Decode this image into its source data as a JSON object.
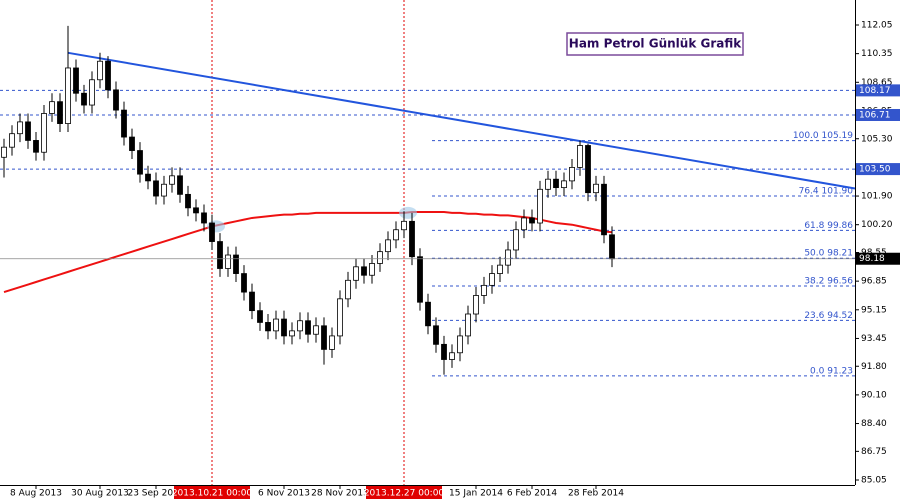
{
  "chart_data": {
    "type": "candlestick",
    "title": "Ham Petrol Günlük Grafik",
    "categories": [
      null,
      null,
      null,
      null,
      "8 Aug 2013",
      null,
      null,
      null,
      null,
      null,
      null,
      null,
      "30 Aug 2013",
      null,
      null,
      null,
      null,
      null,
      null,
      "23 Sep 2013",
      null,
      null,
      null,
      null,
      null,
      null,
      "2013.10.21 00:00",
      null,
      null,
      null,
      null,
      null,
      null,
      null,
      null,
      "6 Nov 2013",
      null,
      null,
      null,
      null,
      null,
      null,
      "28 Nov 2013",
      null,
      null,
      null,
      null,
      null,
      null,
      null,
      "2013.12.27 00:00",
      null,
      null,
      null,
      null,
      null,
      null,
      null,
      null,
      "15 Jan 2014",
      null,
      null,
      null,
      null,
      null,
      null,
      "6 Feb 2014",
      null,
      null,
      null,
      null,
      null,
      null,
      null,
      "28 Feb 2014",
      null,
      null
    ],
    "vlines": [
      "2013.10.21 00:00",
      "2013.12.27 00:00"
    ],
    "open": [
      104.2,
      104.8,
      105.6,
      106.3,
      105.2,
      104.5,
      106.8,
      107.5,
      106.2,
      109.5,
      108.0,
      107.3,
      108.8,
      109.9,
      108.2,
      107.0,
      105.4,
      104.6,
      103.2,
      102.8,
      101.9,
      102.6,
      103.1,
      102.0,
      101.2,
      100.9,
      100.3,
      99.2,
      97.6,
      98.4,
      97.3,
      96.2,
      95.1,
      94.4,
      93.9,
      94.6,
      93.6,
      93.9,
      94.5,
      93.7,
      94.2,
      92.8,
      93.6,
      95.8,
      96.9,
      97.7,
      97.2,
      97.9,
      98.6,
      99.3,
      99.9,
      100.4,
      98.3,
      95.6,
      94.2,
      93.1,
      92.2,
      92.6,
      93.6,
      94.9,
      96.0,
      96.6,
      97.3,
      97.8,
      98.7,
      99.9,
      100.6,
      100.3,
      102.3,
      102.9,
      102.4,
      102.8,
      103.6,
      104.9,
      102.1,
      102.6,
      99.6
    ],
    "high": [
      105.3,
      106.1,
      106.8,
      106.8,
      105.7,
      107.3,
      108.0,
      108.0,
      112.0,
      110.0,
      108.5,
      109.3,
      110.4,
      110.2,
      108.7,
      107.5,
      105.9,
      105.1,
      103.7,
      103.3,
      103.1,
      103.6,
      103.6,
      102.5,
      101.7,
      101.4,
      100.8,
      99.7,
      98.9,
      98.9,
      97.8,
      96.7,
      95.6,
      94.9,
      95.1,
      95.1,
      94.4,
      95.0,
      95.0,
      94.7,
      94.7,
      94.1,
      96.3,
      97.4,
      98.2,
      98.2,
      98.4,
      99.1,
      99.8,
      100.4,
      101.0,
      100.9,
      98.8,
      96.1,
      94.7,
      93.6,
      93.1,
      94.1,
      95.4,
      96.5,
      97.1,
      97.8,
      98.3,
      99.2,
      100.4,
      101.1,
      101.1,
      102.8,
      103.4,
      103.4,
      103.3,
      104.1,
      105.19,
      105.0,
      103.1,
      103.1,
      100.1
    ],
    "low": [
      103.0,
      104.3,
      105.1,
      104.7,
      104.0,
      104.0,
      106.3,
      105.7,
      105.7,
      107.5,
      106.8,
      106.8,
      108.3,
      107.7,
      106.5,
      104.9,
      104.1,
      102.7,
      102.3,
      101.4,
      101.4,
      102.1,
      101.5,
      100.7,
      100.4,
      99.8,
      98.7,
      97.1,
      97.1,
      96.8,
      95.7,
      94.6,
      93.9,
      93.4,
      93.4,
      93.1,
      93.1,
      93.4,
      93.2,
      93.2,
      91.9,
      92.3,
      93.1,
      95.3,
      96.4,
      96.7,
      96.7,
      97.4,
      98.1,
      98.8,
      99.4,
      97.8,
      95.1,
      93.7,
      92.6,
      91.3,
      91.7,
      92.1,
      93.1,
      94.4,
      95.5,
      96.1,
      96.8,
      97.3,
      98.2,
      99.4,
      99.8,
      99.8,
      101.8,
      101.9,
      101.9,
      102.3,
      103.1,
      101.6,
      101.6,
      99.1,
      97.68
    ],
    "close": [
      104.8,
      105.6,
      106.3,
      105.2,
      104.5,
      106.8,
      107.5,
      106.2,
      109.5,
      108.0,
      107.3,
      108.8,
      109.9,
      108.2,
      107.0,
      105.4,
      104.6,
      103.2,
      102.8,
      101.9,
      102.6,
      103.1,
      102.0,
      101.2,
      100.9,
      100.3,
      99.2,
      97.6,
      98.4,
      97.3,
      96.2,
      95.1,
      94.4,
      93.9,
      94.6,
      93.6,
      93.9,
      94.5,
      93.7,
      94.2,
      92.8,
      93.6,
      95.8,
      96.9,
      97.7,
      97.2,
      97.9,
      98.6,
      99.3,
      99.9,
      100.4,
      98.3,
      95.6,
      94.2,
      93.1,
      92.2,
      92.6,
      93.6,
      94.9,
      96.0,
      96.6,
      97.3,
      97.8,
      98.7,
      99.9,
      100.6,
      100.3,
      102.3,
      102.9,
      102.4,
      102.8,
      103.6,
      104.9,
      102.1,
      102.6,
      99.6,
      98.18
    ],
    "ma": {
      "color": "#ee1111",
      "values": [
        96.2,
        96.35,
        96.5,
        96.65,
        96.8,
        96.95,
        97.1,
        97.25,
        97.4,
        97.55,
        97.7,
        97.85,
        98.0,
        98.15,
        98.3,
        98.45,
        98.6,
        98.75,
        98.9,
        99.05,
        99.2,
        99.35,
        99.5,
        99.65,
        99.8,
        99.95,
        100.1,
        100.2,
        100.3,
        100.4,
        100.5,
        100.6,
        100.65,
        100.7,
        100.75,
        100.8,
        100.8,
        100.85,
        100.85,
        100.9,
        100.9,
        100.9,
        100.9,
        100.9,
        100.9,
        100.9,
        100.9,
        100.9,
        100.9,
        100.9,
        100.9,
        100.95,
        100.95,
        100.95,
        100.95,
        100.95,
        100.9,
        100.9,
        100.85,
        100.85,
        100.8,
        100.8,
        100.75,
        100.75,
        100.7,
        100.65,
        100.6,
        100.5,
        100.4,
        100.3,
        100.25,
        100.2,
        100.1,
        100.0,
        99.9,
        99.8,
        99.75
      ]
    },
    "trendline": {
      "color": "#2255dd",
      "values": [
        110.4,
        102.35
      ]
    },
    "price_lines": [
      108.17,
      106.71,
      {
        "value": 103.5,
        "label": "103.50"
      }
    ],
    "fib_levels": [
      {
        "value": 105.19,
        "label": "100.0 105.19"
      },
      {
        "value": 101.9,
        "label": "76.4 101.90"
      },
      {
        "value": 99.86,
        "label": "61.8 99.86"
      },
      {
        "value": 98.21,
        "label": "50.0 98.21"
      },
      {
        "value": 96.56,
        "label": "38.2 96.56"
      },
      {
        "value": 94.52,
        "label": "23.6 94.52"
      },
      {
        "value": 91.23,
        "label": "0.0 91.23"
      }
    ],
    "last_price": 98.18,
    "ylim": [
      85.05,
      112.05
    ],
    "yticks": [
      85.05,
      {
        "value": 86.75,
        "label": "86.75"
      },
      {
        "value": 88.4,
        "label": "88.40"
      },
      {
        "value": 90.1,
        "label": "90.10"
      },
      {
        "value": 91.8,
        "label": "91.80"
      },
      93.45,
      95.15,
      96.85,
      98.55,
      {
        "value": 100.2,
        "label": "100.20"
      },
      {
        "value": 101.9,
        "label": "101.90"
      },
      {
        "value": 103.6,
        "label": "103.60"
      },
      {
        "value": 105.3,
        "label": "105.30"
      },
      106.95,
      108.65,
      110.35,
      112.05
    ]
  }
}
